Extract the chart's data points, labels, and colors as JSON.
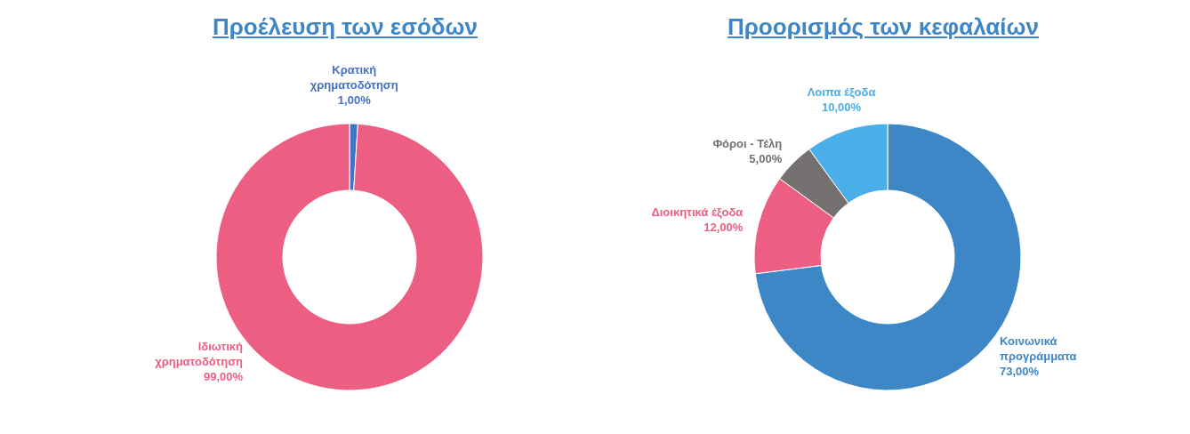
{
  "chart_data": [
    {
      "type": "donut",
      "title": "Προέλευση των εσόδων",
      "categories": [
        "Κρατική χρηματοδότηση",
        "Ιδιωτική χρηματοδότηση"
      ],
      "values": [
        1,
        99
      ],
      "colors": [
        "#4472c4",
        "#ec5f83"
      ],
      "value_labels": [
        "1,00%",
        "99,00%"
      ]
    },
    {
      "type": "donut",
      "title": "Προορισμός των κεφαλαίων",
      "categories": [
        "Κοινωνικά προγράμματα",
        "Διοικητικά έξοδα",
        "Φόροι - Τέλη",
        "Λοιπα έξοδα"
      ],
      "values": [
        73,
        12,
        5,
        10
      ],
      "colors": [
        "#3e87c6",
        "#ec5f83",
        "#757171",
        "#4aaee8"
      ],
      "value_labels": [
        "73,00%",
        "12,00%",
        "5,00%",
        "10,00%"
      ]
    }
  ]
}
